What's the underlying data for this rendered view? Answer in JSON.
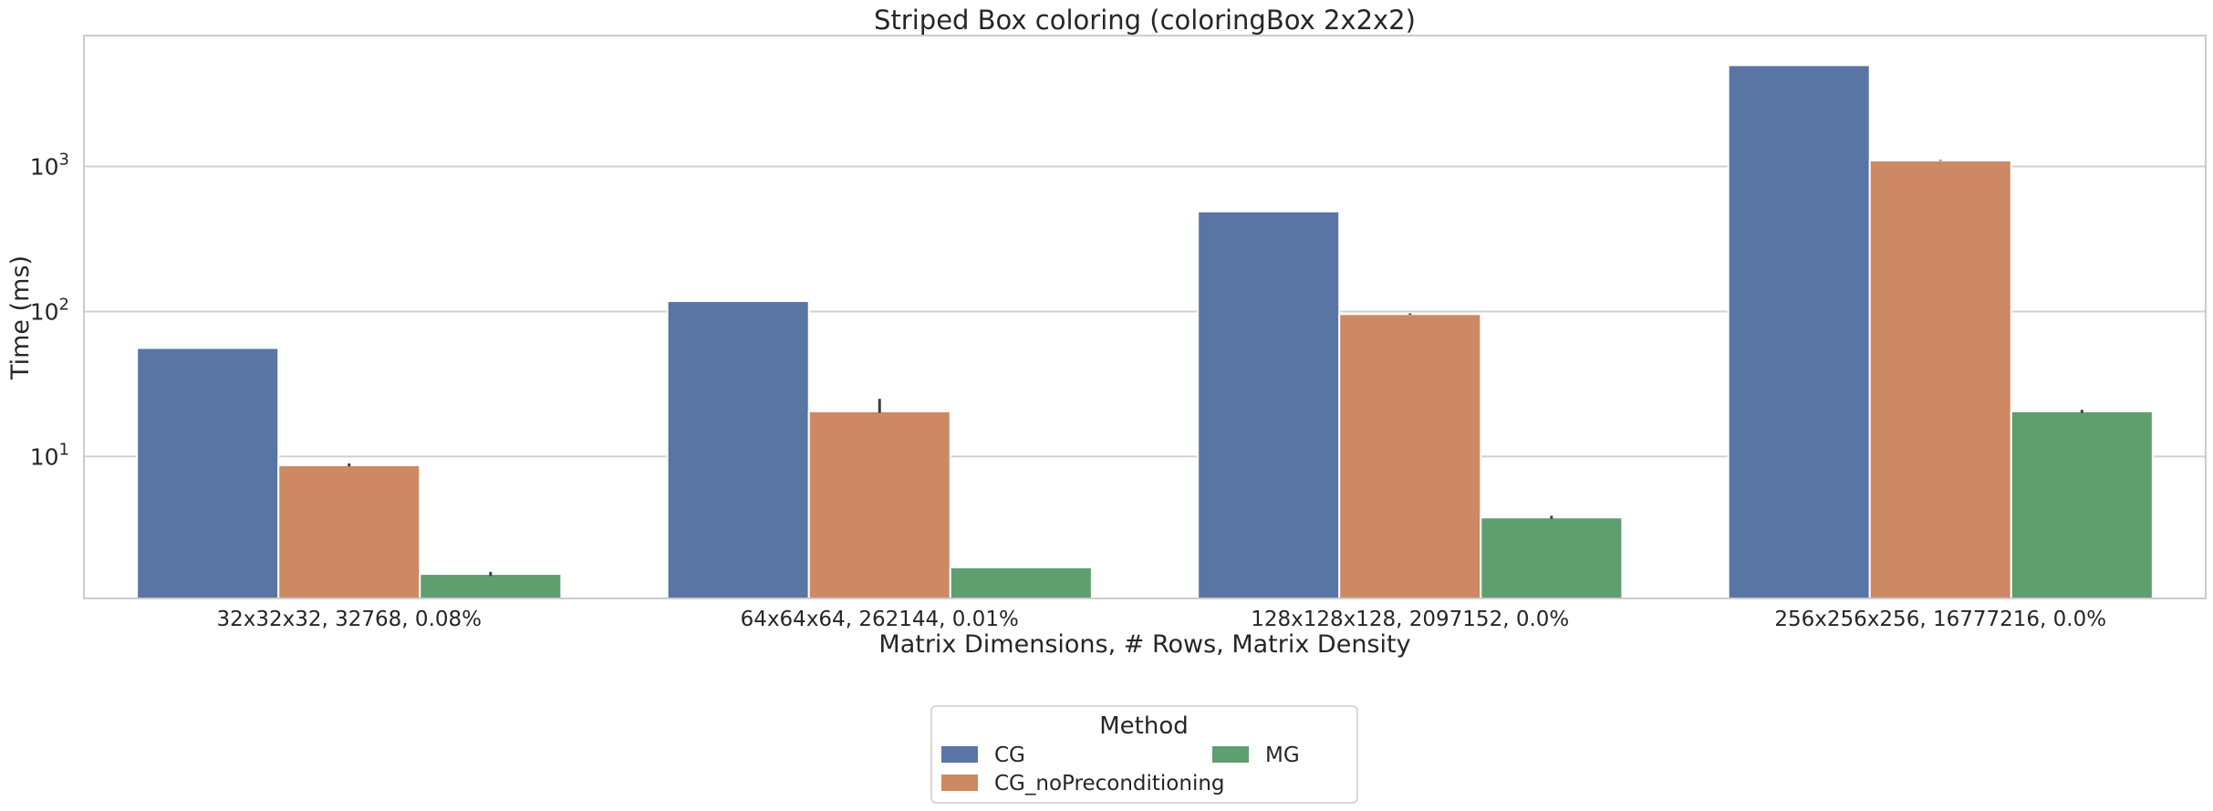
{
  "chart_data": {
    "type": "bar",
    "title": "Striped Box coloring (coloringBox 2x2x2)",
    "xlabel": "Matrix Dimensions, # Rows, Matrix Density",
    "ylabel": "Time (ms)",
    "yscale": "log",
    "ylim": [
      1.05,
      8000
    ],
    "yticks": [
      {
        "value": 10,
        "base": "10",
        "exp": "1"
      },
      {
        "value": 100,
        "base": "10",
        "exp": "2"
      },
      {
        "value": 1000,
        "base": "10",
        "exp": "3"
      }
    ],
    "grid": "horizontal",
    "categories": [
      "32x32x32, 32768, 0.08%",
      "64x64x64, 262144, 0.01%",
      "128x128x128, 2097152, 0.0%",
      "256x256x256, 16777216, 0.0%"
    ],
    "series": [
      {
        "name": "CG",
        "color": "#5875a4",
        "values": [
          56,
          118,
          490,
          5000
        ],
        "error": [
          [
            56,
            56
          ],
          [
            118,
            118
          ],
          [
            490,
            490
          ],
          [
            5000,
            5000
          ]
        ]
      },
      {
        "name": "CG_noPreconditioning",
        "color": "#cc8963",
        "values": [
          8.7,
          20.5,
          96,
          1100
        ],
        "error": [
          [
            8.55,
            8.95
          ],
          [
            20.0,
            25.0
          ],
          [
            95,
            97
          ],
          [
            1095,
            1110
          ]
        ]
      },
      {
        "name": "MG",
        "color": "#5f9e6e",
        "values": [
          1.55,
          1.72,
          3.8,
          20.5
        ],
        "error": [
          [
            1.5,
            1.6
          ],
          [
            1.72,
            1.72
          ],
          [
            3.72,
            3.9
          ],
          [
            20.0,
            21.0
          ]
        ]
      }
    ],
    "legend": {
      "title": "Method",
      "placement": "bottom-center",
      "columns": 2
    }
  }
}
